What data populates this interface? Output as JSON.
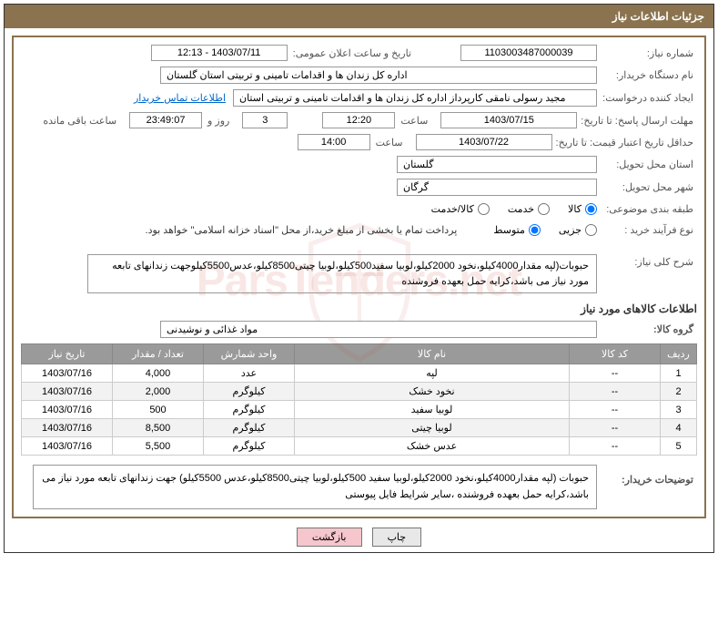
{
  "header": {
    "title": "جزئیات اطلاعات نیاز"
  },
  "watermark": "ParsTenders.net",
  "fields": {
    "need_no_label": "شماره نیاز:",
    "need_no": "1103003487000039",
    "announce_label": "تاریخ و ساعت اعلان عمومی:",
    "announce_val": "1403/07/11 - 12:13",
    "buyer_org_label": "نام دستگاه خریدار:",
    "buyer_org": "اداره کل زندان ها و اقدامات تامینی و تربیتی استان گلستان",
    "requester_label": "ایجاد کننده درخواست:",
    "requester": "مجید رسولی نامقی کارپرداز اداره کل زندان ها و اقدامات تامینی و تربیتی استان",
    "contact_link": "اطلاعات تماس خریدار",
    "deadline_send_label": "مهلت ارسال پاسخ: تا تاریخ:",
    "deadline_send_date": "1403/07/15",
    "time_label": "ساعت",
    "deadline_send_time": "12:20",
    "days_and": "روز و",
    "days_count": "3",
    "countdown": "23:49:07",
    "remaining": "ساعت باقی مانده",
    "min_validity_label": "حداقل تاریخ اعتبار قیمت: تا تاریخ:",
    "min_validity_date": "1403/07/22",
    "min_validity_time": "14:00",
    "province_label": "استان محل تحویل:",
    "province": "گلستان",
    "city_label": "شهر محل تحویل:",
    "city": "گرگان",
    "category_label": "طبقه بندی موضوعی:",
    "opt_goods": "کالا",
    "opt_service": "خدمت",
    "opt_both": "کالا/خدمت",
    "process_label": "نوع فرآیند خرید :",
    "opt_partial": "جزیی",
    "opt_medium": "متوسط",
    "payment_note": "پرداخت تمام یا بخشی از مبلغ خرید،از محل \"اسناد خزانه اسلامی\" خواهد بود.",
    "summary_label": "شرح کلی نیاز:",
    "summary": "حبوبات(لپه مقدار4000کیلو،نخود 2000کیلو،لوبیا سفید500کیلو،لوبیا چیتی8500کیلو،عدس5500کیلوجهت زندانهای تابعه مورد نیاز می باشد،کرایه حمل بعهده فروشنده",
    "items_section": "اطلاعات کالاهای مورد نیاز",
    "group_label": "گروه کالا:",
    "group": "مواد غذائی و نوشیدنی",
    "buyer_desc_label": "توضیحات خریدار:",
    "buyer_desc": "حبوبات (لپه مقدار4000کیلو،نخود 2000کیلو،لوبیا سفید 500کیلو،لوبیا چیتی8500کیلو،عدس 5500کیلو) جهت زندانهای تابعه مورد نیاز می باشد،کرایه حمل بعهده فروشنده ،سایر شرایط فایل پیوستی"
  },
  "table": {
    "headers": {
      "row": "ردیف",
      "code": "کد کالا",
      "name": "نام کالا",
      "unit": "واحد شمارش",
      "qty": "تعداد / مقدار",
      "date": "تاریخ نیاز"
    },
    "rows": [
      {
        "row": "1",
        "code": "--",
        "name": "لپه",
        "unit": "عدد",
        "qty": "4,000",
        "date": "1403/07/16"
      },
      {
        "row": "2",
        "code": "--",
        "name": "نخود خشک",
        "unit": "کیلوگرم",
        "qty": "2,000",
        "date": "1403/07/16"
      },
      {
        "row": "3",
        "code": "--",
        "name": "لوبیا سفید",
        "unit": "کیلوگرم",
        "qty": "500",
        "date": "1403/07/16"
      },
      {
        "row": "4",
        "code": "--",
        "name": "لوبیا چیتی",
        "unit": "کیلوگرم",
        "qty": "8,500",
        "date": "1403/07/16"
      },
      {
        "row": "5",
        "code": "--",
        "name": "عدس خشک",
        "unit": "کیلوگرم",
        "qty": "5,500",
        "date": "1403/07/16"
      }
    ]
  },
  "buttons": {
    "print": "چاپ",
    "back": "بازگشت"
  },
  "colors": {
    "header_bg": "#8a734e",
    "border": "#8a734e",
    "th_bg": "#9a9a9a",
    "link": "#0066cc",
    "back_btn": "#f5c6cb"
  }
}
